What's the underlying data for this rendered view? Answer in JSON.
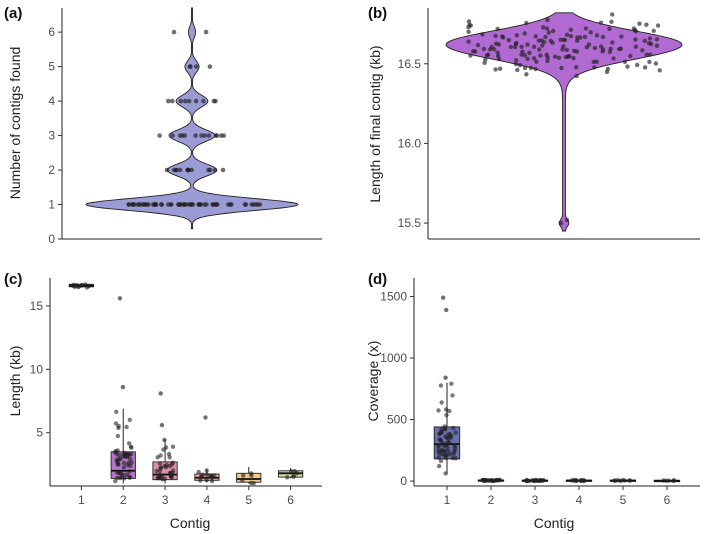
{
  "chart_data": [
    {
      "panel": "(a)",
      "type": "violin",
      "title": "",
      "xlabel": "",
      "ylabel": "Number of contigs found",
      "ylim": [
        0,
        6.7
      ],
      "yticks": [
        "0",
        "1",
        "2",
        "3",
        "4",
        "5",
        "6"
      ],
      "fill": "#9b9bd6",
      "values_counts": {
        "1": 60,
        "2": 14,
        "3": 13,
        "4": 9,
        "5": 4,
        "6": 2
      },
      "points": [
        {
          "y": 1,
          "n": 60
        },
        {
          "y": 2,
          "n": 14
        },
        {
          "y": 3,
          "n": 13
        },
        {
          "y": 4,
          "n": 9
        },
        {
          "y": 5,
          "n": 4
        },
        {
          "y": 6,
          "n": 2
        }
      ]
    },
    {
      "panel": "(b)",
      "type": "violin",
      "title": "",
      "xlabel": "",
      "ylabel": "Length of final contig (kb)",
      "ylim": [
        15.4,
        16.85
      ],
      "yticks": [
        "15.5",
        "16.0",
        "16.5"
      ],
      "fill": "#b06ad2",
      "summary": {
        "median": 16.62,
        "min": 15.45,
        "max": 16.82,
        "n": 150,
        "outliers": [
          15.5,
          15.52
        ]
      }
    },
    {
      "panel": "(c)",
      "type": "box",
      "title": "",
      "xlabel": "Contig",
      "ylabel": "Length (kb)",
      "ylim": [
        0.8,
        17.2
      ],
      "yticks": [
        "5",
        "10",
        "15"
      ],
      "categories": [
        "1",
        "2",
        "3",
        "4",
        "5",
        "6"
      ],
      "boxes": [
        {
          "category": "1",
          "q1": 16.5,
          "median": 16.6,
          "q3": 16.7,
          "whisker_low": 16.45,
          "whisker_high": 16.8,
          "color": "#aaaaff"
        },
        {
          "category": "2",
          "q1": 1.4,
          "median": 2.0,
          "q3": 3.5,
          "whisker_low": 1.0,
          "whisker_high": 6.9,
          "color": "#b574c7",
          "outliers": [
            8.6,
            15.6
          ]
        },
        {
          "category": "3",
          "q1": 1.3,
          "median": 1.7,
          "q3": 2.7,
          "whisker_low": 1.0,
          "whisker_high": 4.5,
          "color": "#dd8fb0",
          "outliers": [
            5.6,
            8.1
          ]
        },
        {
          "category": "4",
          "q1": 1.25,
          "median": 1.45,
          "q3": 1.75,
          "whisker_low": 1.1,
          "whisker_high": 2.1,
          "color": "#eda89c",
          "outliers": [
            6.2
          ]
        },
        {
          "category": "5",
          "q1": 1.1,
          "median": 1.35,
          "q3": 1.8,
          "whisker_low": 1.0,
          "whisker_high": 2.3,
          "color": "#f3c985"
        },
        {
          "category": "6",
          "q1": 1.5,
          "median": 1.8,
          "q3": 2.0,
          "whisker_low": 1.4,
          "whisker_high": 2.2,
          "color": "#d7df9c"
        }
      ]
    },
    {
      "panel": "(d)",
      "type": "box",
      "title": "",
      "xlabel": "Contig",
      "ylabel": "Coverage (x)",
      "ylim": [
        -40,
        1650
      ],
      "yticks": [
        "0",
        "500",
        "1000",
        "1500"
      ],
      "categories": [
        "1",
        "2",
        "3",
        "4",
        "5",
        "6"
      ],
      "boxes": [
        {
          "category": "1",
          "q1": 180,
          "median": 300,
          "q3": 440,
          "whisker_low": 60,
          "whisker_high": 800,
          "color": "#6a6fb0",
          "outliers": [
            840,
            1390,
            1490
          ]
        },
        {
          "category": "2",
          "q1": 2,
          "median": 5,
          "q3": 9,
          "whisker_low": 0,
          "whisker_high": 14,
          "color": "#6a6fb0"
        },
        {
          "category": "3",
          "q1": 2,
          "median": 4,
          "q3": 7,
          "whisker_low": 0,
          "whisker_high": 11,
          "color": "#6a6fb0"
        },
        {
          "category": "4",
          "q1": 2,
          "median": 4,
          "q3": 7,
          "whisker_low": 0,
          "whisker_high": 10,
          "color": "#6a6fb0"
        },
        {
          "category": "5",
          "q1": 2,
          "median": 4,
          "q3": 7,
          "whisker_low": 0,
          "whisker_high": 10,
          "color": "#6a6fb0"
        },
        {
          "category": "6",
          "q1": 2,
          "median": 3,
          "q3": 5,
          "whisker_low": 0,
          "whisker_high": 8,
          "color": "#6a6fb0"
        }
      ]
    }
  ]
}
